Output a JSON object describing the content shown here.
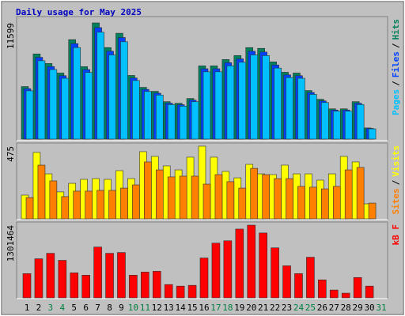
{
  "chart_data": {
    "type": "bar",
    "title": "Daily usage for May 2025",
    "categories": [
      "1",
      "2",
      "3",
      "4",
      "5",
      "6",
      "7",
      "8",
      "9",
      "10",
      "11",
      "12",
      "13",
      "14",
      "15",
      "16",
      "17",
      "18",
      "19",
      "20",
      "21",
      "22",
      "23",
      "24",
      "25",
      "26",
      "27",
      "28",
      "29",
      "30",
      "31"
    ],
    "tick_label_colors": [
      "#000000",
      "#000000",
      "#008040",
      "#008040",
      "#000000",
      "#000000",
      "#000000",
      "#000000",
      "#000000",
      "#008040",
      "#008040",
      "#000000",
      "#000000",
      "#000000",
      "#000000",
      "#000000",
      "#008040",
      "#008040",
      "#000000",
      "#000000",
      "#000000",
      "#000000",
      "#000000",
      "#008040",
      "#008040",
      "#000000",
      "#000000",
      "#000000",
      "#000000",
      "#000000",
      "#008040"
    ],
    "legend_separator": "/",
    "panels": [
      {
        "ylim": [
          0,
          11599
        ],
        "yticks": [
          11599
        ],
        "series": [
          {
            "name": "Hits",
            "color": "#00805c",
            "values": [
              5243,
              8500,
              7547,
              6594,
              9930,
              7229,
              11599,
              9136,
              10566,
              6356,
              5164,
              4767,
              3734,
              3575,
              4052,
              7309,
              7309,
              7944,
              8342,
              9136,
              9057,
              7706,
              6673,
              6594,
              4846,
              3972,
              3019,
              3019,
              3734,
              1112,
              0
            ]
          },
          {
            "name": "Files",
            "color": "#0040ff",
            "values": [
              5030,
              8160,
              7240,
              6330,
              9530,
              6940,
              11130,
              8770,
              10140,
              6100,
              4960,
              4580,
              3580,
              3430,
              3890,
              7020,
              7020,
              7630,
              8010,
              8770,
              8690,
              7400,
              6410,
              6330,
              4650,
              3810,
              2900,
              2900,
              3580,
              1070,
              0
            ]
          },
          {
            "name": "Pages",
            "color": "#00c0ff",
            "values": [
              4820,
              7820,
              6940,
              6070,
              9140,
              6650,
              10670,
              8400,
              9720,
              5850,
              4750,
              4390,
              3440,
              3290,
              3730,
              6720,
              6720,
              7310,
              7670,
              8400,
              8330,
              7090,
              6140,
              6070,
              4460,
              3650,
              2780,
              2780,
              3440,
              1020,
              0
            ]
          }
        ]
      },
      {
        "ylim": [
          0,
          475
        ],
        "yticks": [
          475
        ],
        "series": [
          {
            "name": "Visits",
            "color": "#ffff00",
            "values": [
              155,
              434,
              294,
              176,
              232,
              258,
              263,
              258,
              315,
              263,
              439,
              408,
              346,
              320,
              403,
              475,
              403,
              310,
              268,
              356,
              294,
              289,
              351,
              294,
              294,
              253,
              294,
              408,
              372,
              98,
              0
            ]
          },
          {
            "name": "Sites",
            "color": "#ff8000",
            "values": [
              139,
              351,
              248,
              145,
              181,
              181,
              186,
              186,
              201,
              222,
              372,
              320,
              274,
              279,
              279,
              227,
              289,
              243,
              201,
              330,
              289,
              263,
              263,
              212,
              207,
              196,
              212,
              320,
              336,
              103,
              0
            ]
          }
        ]
      },
      {
        "ylim": [
          0,
          1301464
        ],
        "yticks": [
          1301464
        ],
        "series": [
          {
            "name": "kB F",
            "color": "#ff0000",
            "values": [
              433800,
              699700,
              797700,
              671700,
              447800,
              405800,
              909600,
              797700,
              811700,
              405800,
              461800,
              475800,
              237900,
              209900,
              223900,
              713700,
              979600,
              1021600,
              1231500,
              1301464,
              1161500,
              895600,
              573800,
              433800,
              727700,
              321900,
              139900,
              84000,
              363800,
              209900,
              0
            ]
          }
        ]
      }
    ]
  }
}
